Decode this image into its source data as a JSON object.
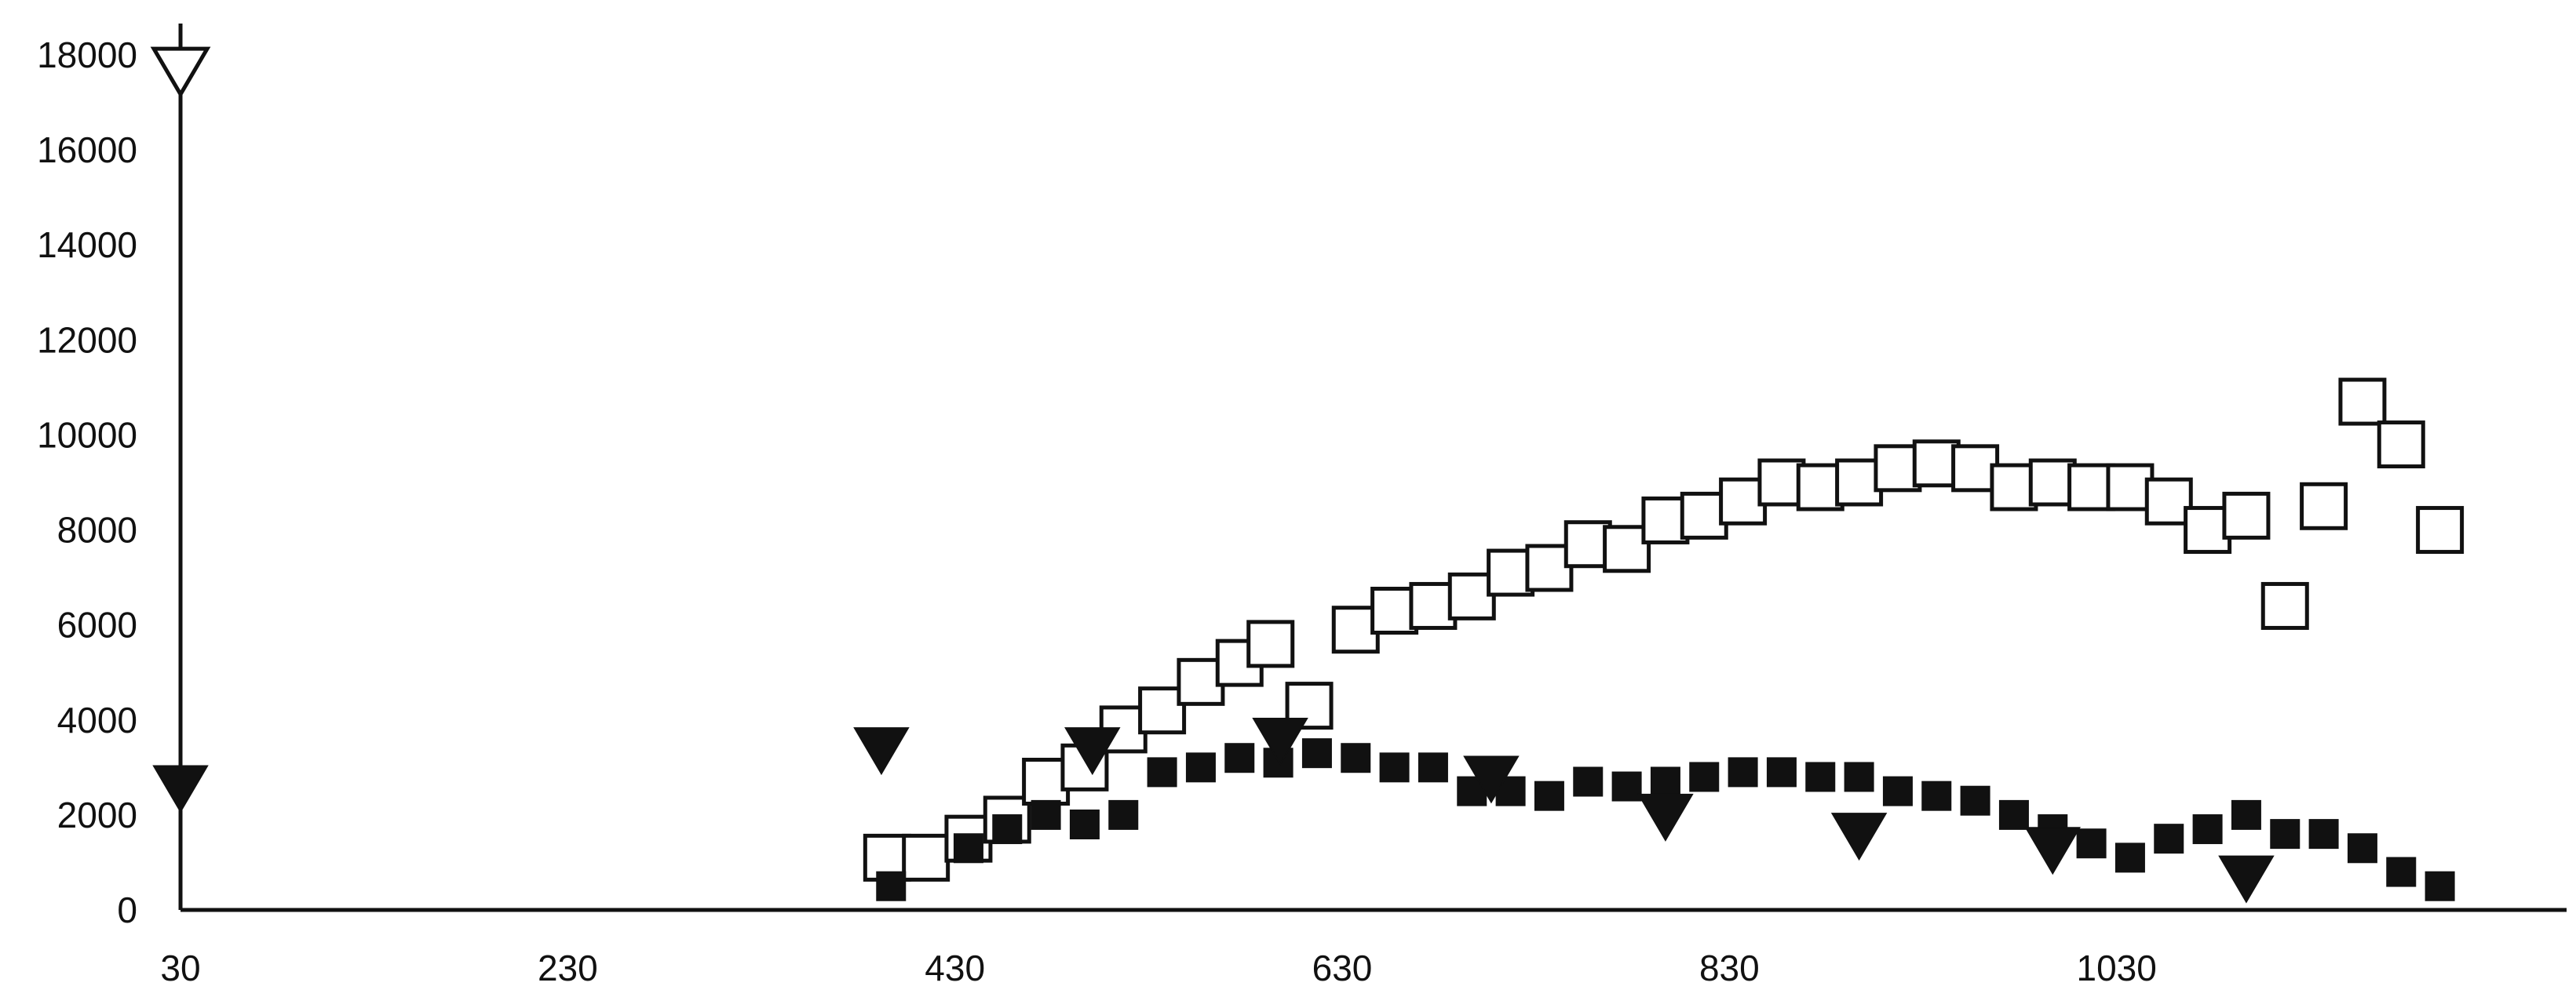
{
  "chart_data": {
    "type": "scatter",
    "title": "",
    "xlabel": "",
    "ylabel": "",
    "xlim": [
      30,
      1230
    ],
    "ylim": [
      0,
      18000
    ],
    "x_ticks": [
      "30",
      "230",
      "430",
      "630",
      "830",
      "1030"
    ],
    "y_ticks": [
      "0",
      "2000",
      "4000",
      "6000",
      "8000",
      "10000",
      "12000",
      "14000",
      "16000",
      "18000"
    ],
    "grid": false,
    "legend": "none",
    "colors": {
      "axis": "#111111",
      "filled": "#111111",
      "open": "#ffffff"
    },
    "series": [
      {
        "marker": "open-square",
        "points": [
          [
            395,
            1100
          ],
          [
            415,
            1100
          ],
          [
            437,
            1500
          ],
          [
            457,
            1900
          ],
          [
            477,
            2700
          ],
          [
            497,
            3000
          ],
          [
            517,
            3800
          ],
          [
            537,
            4200
          ],
          [
            557,
            4800
          ],
          [
            577,
            5200
          ],
          [
            593,
            5600
          ],
          [
            613,
            4300
          ],
          [
            637,
            5900
          ],
          [
            657,
            6300
          ],
          [
            677,
            6400
          ],
          [
            697,
            6600
          ],
          [
            717,
            7100
          ],
          [
            737,
            7200
          ],
          [
            757,
            7700
          ],
          [
            777,
            7600
          ],
          [
            797,
            8200
          ],
          [
            817,
            8300
          ],
          [
            837,
            8600
          ],
          [
            857,
            9000
          ],
          [
            877,
            8900
          ],
          [
            897,
            9000
          ],
          [
            917,
            9300
          ],
          [
            937,
            9400
          ],
          [
            957,
            9300
          ],
          [
            977,
            8900
          ],
          [
            997,
            9000
          ],
          [
            1017,
            8900
          ],
          [
            1037,
            8900
          ],
          [
            1057,
            8600
          ],
          [
            1077,
            8000
          ],
          [
            1097,
            8300
          ],
          [
            1117,
            6400
          ],
          [
            1137,
            8500
          ],
          [
            1157,
            10700
          ],
          [
            1177,
            9800
          ],
          [
            1197,
            8000
          ]
        ]
      },
      {
        "marker": "filled-square",
        "points": [
          [
            397,
            500
          ],
          [
            437,
            1300
          ],
          [
            457,
            1700
          ],
          [
            477,
            2000
          ],
          [
            497,
            1800
          ],
          [
            517,
            2000
          ],
          [
            537,
            2900
          ],
          [
            557,
            3000
          ],
          [
            577,
            3200
          ],
          [
            597,
            3100
          ],
          [
            617,
            3300
          ],
          [
            637,
            3200
          ],
          [
            657,
            3000
          ],
          [
            677,
            3000
          ],
          [
            697,
            2500
          ],
          [
            717,
            2500
          ],
          [
            737,
            2400
          ],
          [
            757,
            2700
          ],
          [
            777,
            2600
          ],
          [
            797,
            2700
          ],
          [
            817,
            2800
          ],
          [
            837,
            2900
          ],
          [
            857,
            2900
          ],
          [
            877,
            2800
          ],
          [
            897,
            2800
          ],
          [
            917,
            2500
          ],
          [
            937,
            2400
          ],
          [
            957,
            2300
          ],
          [
            977,
            2000
          ],
          [
            997,
            1700
          ],
          [
            1017,
            1400
          ],
          [
            1037,
            1100
          ],
          [
            1057,
            1500
          ],
          [
            1077,
            1700
          ],
          [
            1097,
            2000
          ],
          [
            1117,
            1600
          ],
          [
            1137,
            1600
          ],
          [
            1157,
            1300
          ],
          [
            1177,
            800
          ],
          [
            1197,
            500
          ]
        ]
      },
      {
        "marker": "filled-triangle-down",
        "points": [
          [
            30,
            2600
          ],
          [
            392,
            3400
          ],
          [
            501,
            3400
          ],
          [
            598,
            3600
          ],
          [
            707,
            2800
          ],
          [
            797,
            2000
          ],
          [
            897,
            1600
          ],
          [
            997,
            1300
          ],
          [
            1097,
            700
          ]
        ]
      },
      {
        "marker": "open-triangle-down",
        "points": [
          [
            30,
            17700
          ]
        ]
      }
    ]
  }
}
